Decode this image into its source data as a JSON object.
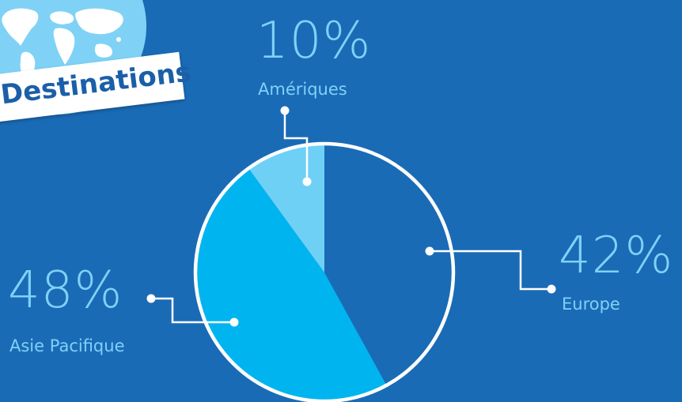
{
  "title": "Destinations",
  "colors": {
    "background": "#1a6bb6",
    "label_text": "#7fd1f7",
    "europe": "#1a6bb6",
    "asie_pacifique": "#00b5ef",
    "ameriques": "#6fd0f6",
    "outline": "#ffffff",
    "globe": "#7fd2f5"
  },
  "icon": "world-map-globe-icon",
  "chart_data": {
    "type": "pie",
    "slices": [
      {
        "label": "Amériques",
        "value": 10,
        "display": "10%"
      },
      {
        "label": "Europe",
        "value": 42,
        "display": "42%"
      },
      {
        "label": "Asie Pacifique",
        "value": 48,
        "display": "48%"
      }
    ],
    "start_angle": "12 o'clock",
    "direction": "clockwise-from-Europe",
    "legend": "callouts"
  }
}
